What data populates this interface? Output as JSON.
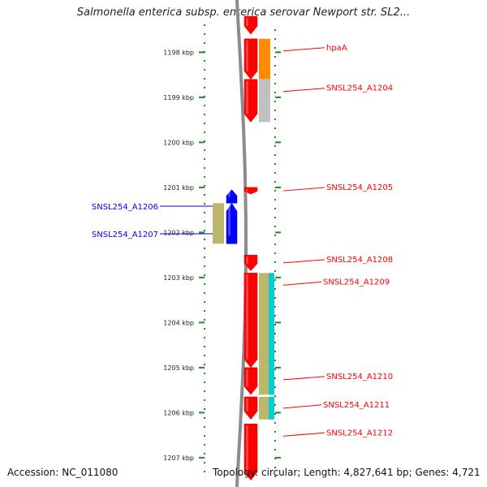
{
  "title": "Salmonella enterica subsp. enterica serovar Newport str. SL2...",
  "footer": {
    "accession": "Accession: NC_011080",
    "summary": "Topology: circular; Length: 4,827,641 bp; Genes: 4,721"
  },
  "colors": {
    "forward": "#ff0000",
    "reverse": "#0000ff",
    "tick": "#228b22",
    "backbone": "#8c8c8c"
  },
  "scale": {
    "start_kbp": 1197.2,
    "ticks": [
      "1198 kbp",
      "1199 kbp",
      "1200 kbp",
      "1201 kbp",
      "1202 kbp",
      "1203 kbp",
      "1204 kbp",
      "1205 kbp",
      "1206 kbp",
      "1207 kbp"
    ]
  },
  "features": [
    {
      "strand": "+",
      "kind": "gene",
      "start": 1197.2,
      "end": 1197.6,
      "color": "#ff0000"
    },
    {
      "strand": "+",
      "kind": "gene",
      "start": 1197.7,
      "end": 1198.6,
      "color": "#ff0000",
      "label": "hpaA"
    },
    {
      "strand": "+",
      "kind": "cds",
      "start": 1197.7,
      "end": 1198.6,
      "color": "#ff8c00"
    },
    {
      "strand": "+",
      "kind": "gene",
      "start": 1198.6,
      "end": 1199.55,
      "color": "#ff0000",
      "label": "SNSL254_A1204"
    },
    {
      "strand": "+",
      "kind": "cds",
      "start": 1198.6,
      "end": 1199.55,
      "color": "#c0c0c0"
    },
    {
      "strand": "+",
      "kind": "gene",
      "start": 1201.0,
      "end": 1201.15,
      "color": "#ff0000",
      "label": "SNSL254_A1205"
    },
    {
      "strand": "-",
      "kind": "gene",
      "start": 1201.05,
      "end": 1201.35,
      "color": "#0000ff",
      "label": "SNSL254_A1206"
    },
    {
      "strand": "-",
      "kind": "gene",
      "start": 1201.35,
      "end": 1202.25,
      "color": "#0000ff",
      "label": "SNSL254_A1207"
    },
    {
      "strand": "-",
      "kind": "cds",
      "start": 1201.35,
      "end": 1202.25,
      "color": "#bdb76b"
    },
    {
      "strand": "+",
      "kind": "gene",
      "start": 1202.5,
      "end": 1202.85,
      "color": "#ff0000",
      "label": "SNSL254_A1208"
    },
    {
      "strand": "+",
      "kind": "gene",
      "start": 1202.9,
      "end": 1205.0,
      "color": "#ff0000",
      "label": "SNSL254_A1209"
    },
    {
      "strand": "+",
      "kind": "cds",
      "start": 1202.9,
      "end": 1205.0,
      "color": "#bdb76b"
    },
    {
      "strand": "+",
      "kind": "cds2",
      "start": 1202.9,
      "end": 1205.0,
      "color": "#00ced1"
    },
    {
      "strand": "+",
      "kind": "gene",
      "start": 1205.0,
      "end": 1205.6,
      "color": "#ff0000",
      "label": "SNSL254_A1210"
    },
    {
      "strand": "+",
      "kind": "cds",
      "start": 1205.0,
      "end": 1205.6,
      "color": "#bdb76b"
    },
    {
      "strand": "+",
      "kind": "cds2",
      "start": 1205.0,
      "end": 1205.6,
      "color": "#00ced1"
    },
    {
      "strand": "+",
      "kind": "gene",
      "start": 1205.65,
      "end": 1206.15,
      "color": "#ff0000",
      "label": "SNSL254_A1211"
    },
    {
      "strand": "+",
      "kind": "cds",
      "start": 1205.65,
      "end": 1206.15,
      "color": "#bdb76b"
    },
    {
      "strand": "+",
      "kind": "cds2",
      "start": 1205.65,
      "end": 1206.15,
      "color": "#00ced1"
    },
    {
      "strand": "+",
      "kind": "gene",
      "start": 1206.25,
      "end": 1207.5,
      "color": "#ff0000",
      "label": "SNSL254_A1212"
    }
  ]
}
